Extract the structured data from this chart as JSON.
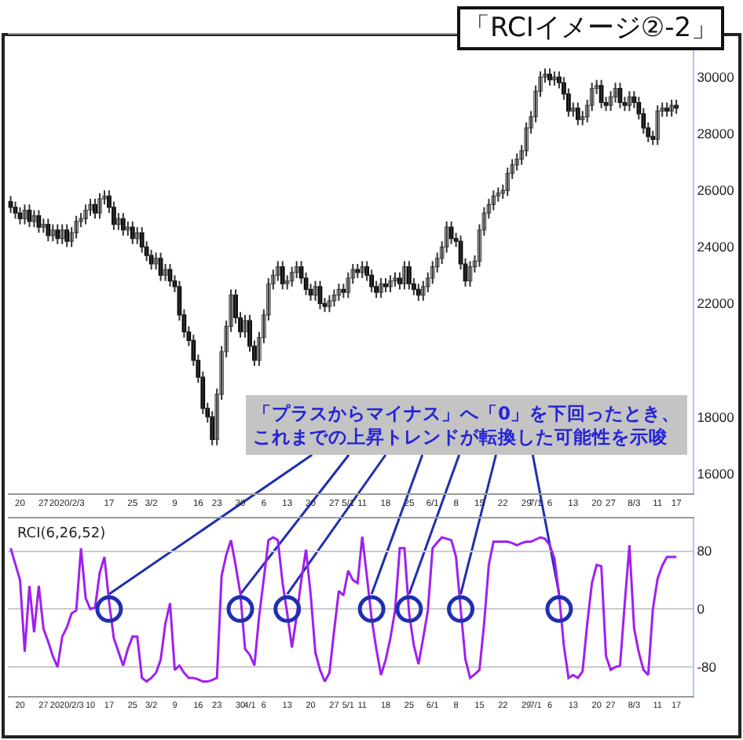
{
  "chart_data": [
    {
      "type": "candlestick",
      "title": "「RCIイメージ②-2」",
      "categories": [
        null,
        null,
        "20",
        null,
        null,
        null,
        null,
        "27",
        null,
        null,
        null,
        null,
        "2020/2/3",
        null,
        null,
        null,
        null,
        null,
        null,
        null,
        null,
        "17",
        null,
        null,
        null,
        null,
        "25",
        null,
        null,
        null,
        "3/2",
        null,
        null,
        null,
        null,
        "9",
        null,
        null,
        null,
        null,
        "16",
        null,
        null,
        null,
        "23",
        null,
        null,
        null,
        null,
        "30",
        null,
        null,
        null,
        null,
        "6",
        null,
        null,
        null,
        null,
        "13",
        null,
        null,
        null,
        null,
        "20",
        null,
        null,
        null,
        null,
        "27",
        null,
        null,
        "5/1",
        null,
        null,
        "11",
        null,
        null,
        null,
        null,
        "18",
        null,
        null,
        null,
        null,
        "25",
        null,
        null,
        null,
        null,
        "6/1",
        null,
        null,
        null,
        null,
        "8",
        null,
        null,
        null,
        null,
        "15",
        null,
        null,
        null,
        null,
        "22",
        null,
        null,
        null,
        null,
        "29",
        null,
        "7/1",
        null,
        null,
        "6",
        null,
        null,
        null,
        null,
        "13",
        null,
        null,
        null,
        null,
        "20",
        null,
        null,
        "27",
        null,
        null,
        null,
        null,
        "8/3",
        null,
        null,
        null,
        null,
        "11",
        null,
        null,
        null,
        "17"
      ],
      "ohlc": [
        [
          25600,
          25800,
          25200,
          25400
        ],
        [
          25400,
          25600,
          25000,
          25200
        ],
        [
          25200,
          25400,
          24800,
          25000
        ],
        [
          25000,
          25500,
          24800,
          25300
        ],
        [
          25300,
          25500,
          24700,
          24900
        ],
        [
          24900,
          25300,
          24700,
          25100
        ],
        [
          25100,
          25300,
          24500,
          24700
        ],
        [
          24700,
          25000,
          24500,
          24800
        ],
        [
          24800,
          25000,
          24200,
          24400
        ],
        [
          24400,
          24800,
          24200,
          24600
        ],
        [
          24600,
          24800,
          24100,
          24300
        ],
        [
          24300,
          24800,
          24100,
          24600
        ],
        [
          24600,
          24800,
          24000,
          24200
        ],
        [
          24200,
          24700,
          24000,
          24500
        ],
        [
          24500,
          25100,
          24300,
          24900
        ],
        [
          24900,
          25200,
          24700,
          25000
        ],
        [
          25000,
          25500,
          24800,
          25300
        ],
        [
          25300,
          25700,
          25100,
          25500
        ],
        [
          25500,
          25700,
          25000,
          25200
        ],
        [
          25200,
          25900,
          25000,
          25700
        ],
        [
          25700,
          26000,
          25500,
          25800
        ],
        [
          25800,
          26000,
          25200,
          25400
        ],
        [
          25400,
          25600,
          24600,
          24800
        ],
        [
          24800,
          25200,
          24600,
          25000
        ],
        [
          25000,
          25200,
          24400,
          24600
        ],
        [
          24600,
          24900,
          24400,
          24700
        ],
        [
          24700,
          24900,
          24100,
          24300
        ],
        [
          24300,
          24700,
          24100,
          24500
        ],
        [
          24500,
          24700,
          23800,
          24000
        ],
        [
          24000,
          24200,
          23500,
          23700
        ],
        [
          23700,
          23900,
          23200,
          23400
        ],
        [
          23400,
          23800,
          23200,
          23600
        ],
        [
          23600,
          23800,
          22800,
          23000
        ],
        [
          23000,
          23400,
          22800,
          23200
        ],
        [
          23200,
          23400,
          22600,
          22800
        ],
        [
          22800,
          23000,
          22400,
          22600
        ],
        [
          22600,
          22800,
          21400,
          21600
        ],
        [
          21600,
          21800,
          20800,
          21000
        ],
        [
          21000,
          21200,
          20500,
          20700
        ],
        [
          20700,
          20900,
          19800,
          20000
        ],
        [
          20000,
          20200,
          19200,
          19400
        ],
        [
          19400,
          19600,
          18100,
          18300
        ],
        [
          18300,
          18500,
          17800,
          18000
        ],
        [
          18000,
          18200,
          17000,
          17200
        ],
        [
          17200,
          19000,
          17000,
          18800
        ],
        [
          18800,
          20500,
          18600,
          20300
        ],
        [
          20300,
          21400,
          20100,
          21200
        ],
        [
          21200,
          22500,
          21000,
          22300
        ],
        [
          22300,
          22500,
          21300,
          21500
        ],
        [
          21500,
          21700,
          20800,
          21000
        ],
        [
          21000,
          21600,
          20800,
          21400
        ],
        [
          21400,
          21600,
          20300,
          20500
        ],
        [
          20500,
          20700,
          19800,
          20000
        ],
        [
          20000,
          21000,
          19800,
          20800
        ],
        [
          20800,
          21800,
          20600,
          21600
        ],
        [
          21600,
          22900,
          21400,
          22700
        ],
        [
          22700,
          23200,
          22500,
          23000
        ],
        [
          23000,
          23500,
          22800,
          23300
        ],
        [
          23300,
          23500,
          22500,
          22700
        ],
        [
          22700,
          23000,
          22500,
          22800
        ],
        [
          22800,
          23300,
          22600,
          23100
        ],
        [
          23100,
          23500,
          22900,
          23300
        ],
        [
          23300,
          23500,
          22700,
          22900
        ],
        [
          22900,
          23100,
          22300,
          22500
        ],
        [
          22500,
          22700,
          22100,
          22300
        ],
        [
          22300,
          22800,
          22100,
          22600
        ],
        [
          22600,
          22800,
          21800,
          22000
        ],
        [
          22000,
          22200,
          21700,
          21900
        ],
        [
          21900,
          22300,
          21700,
          22100
        ],
        [
          22100,
          22500,
          21900,
          22300
        ],
        [
          22300,
          22700,
          22100,
          22500
        ],
        [
          22500,
          22700,
          22200,
          22400
        ],
        [
          22400,
          23100,
          22200,
          22900
        ],
        [
          22900,
          23400,
          22700,
          23200
        ],
        [
          23200,
          23400,
          22900,
          23100
        ],
        [
          23100,
          23500,
          22900,
          23300
        ],
        [
          23300,
          23500,
          22800,
          23000
        ],
        [
          23000,
          23200,
          22400,
          22600
        ],
        [
          22600,
          22800,
          22200,
          22400
        ],
        [
          22400,
          22900,
          22200,
          22700
        ],
        [
          22700,
          22900,
          22400,
          22600
        ],
        [
          22600,
          23000,
          22400,
          22800
        ],
        [
          22800,
          23100,
          22600,
          22900
        ],
        [
          22900,
          23100,
          22500,
          22700
        ],
        [
          22700,
          23500,
          22500,
          23300
        ],
        [
          23300,
          23500,
          22500,
          22700
        ],
        [
          22700,
          22900,
          22300,
          22500
        ],
        [
          22500,
          22700,
          22100,
          22300
        ],
        [
          22300,
          22800,
          22100,
          22600
        ],
        [
          22600,
          23100,
          22400,
          22900
        ],
        [
          22900,
          23500,
          22700,
          23300
        ],
        [
          23300,
          23800,
          23100,
          23600
        ],
        [
          23600,
          24200,
          23400,
          24000
        ],
        [
          24000,
          24900,
          23800,
          24700
        ],
        [
          24700,
          24900,
          24100,
          24300
        ],
        [
          24300,
          24500,
          24000,
          24200
        ],
        [
          24200,
          24400,
          23200,
          23400
        ],
        [
          23400,
          23600,
          22600,
          22800
        ],
        [
          22800,
          23500,
          22600,
          23300
        ],
        [
          23300,
          23700,
          23100,
          23500
        ],
        [
          23500,
          24800,
          23300,
          24600
        ],
        [
          24600,
          25400,
          24400,
          25200
        ],
        [
          25200,
          25700,
          25000,
          25500
        ],
        [
          25500,
          26000,
          25300,
          25800
        ],
        [
          25800,
          26100,
          25600,
          25900
        ],
        [
          25900,
          26200,
          25700,
          26000
        ],
        [
          26000,
          26800,
          25800,
          26600
        ],
        [
          26600,
          27100,
          26400,
          26900
        ],
        [
          26900,
          27300,
          26700,
          27100
        ],
        [
          27100,
          27600,
          26900,
          27400
        ],
        [
          27400,
          28400,
          27200,
          28200
        ],
        [
          28200,
          28800,
          28000,
          28600
        ],
        [
          28600,
          29700,
          28400,
          29500
        ],
        [
          29500,
          30200,
          29300,
          30000
        ],
        [
          30000,
          30300,
          29800,
          30100
        ],
        [
          30100,
          30300,
          29700,
          29900
        ],
        [
          29900,
          30200,
          29700,
          30000
        ],
        [
          30000,
          30200,
          29600,
          29800
        ],
        [
          29800,
          30000,
          29200,
          29400
        ],
        [
          29400,
          29600,
          28600,
          28800
        ],
        [
          28800,
          29100,
          28600,
          28900
        ],
        [
          28900,
          29100,
          28300,
          28500
        ],
        [
          28500,
          28800,
          28300,
          28600
        ],
        [
          28600,
          29200,
          28400,
          29000
        ],
        [
          29000,
          29800,
          28800,
          29600
        ],
        [
          29600,
          29900,
          29400,
          29700
        ],
        [
          29700,
          29900,
          28900,
          29100
        ],
        [
          29100,
          29300,
          28800,
          29000
        ],
        [
          29000,
          29500,
          28800,
          29300
        ],
        [
          29300,
          29800,
          29100,
          29600
        ],
        [
          29600,
          29800,
          28900,
          29100
        ],
        [
          29100,
          29300,
          28800,
          29000
        ],
        [
          29000,
          29500,
          28800,
          29300
        ],
        [
          29300,
          29500,
          28900,
          29100
        ],
        [
          29100,
          29300,
          28500,
          28700
        ],
        [
          28700,
          28900,
          28000,
          28200
        ],
        [
          28200,
          28400,
          27700,
          27900
        ],
        [
          27900,
          28100,
          27600,
          27800
        ],
        [
          27800,
          29000,
          27600,
          28800
        ],
        [
          28800,
          29100,
          28600,
          28900
        ],
        [
          28900,
          29100,
          28600,
          28800
        ],
        [
          28800,
          29200,
          28600,
          29000
        ],
        [
          29000,
          29200,
          28700,
          28900
        ]
      ],
      "ylim": [
        15300,
        31500
      ],
      "yticks": [
        30000,
        28000,
        26000,
        24000,
        22000,
        18000,
        16000
      ],
      "grid": false,
      "annotations": [
        "「プラスからマイナス」へ「0」を下回ったとき、これまでの上昇トレンドが転換した可能性を示唆"
      ]
    },
    {
      "type": "line",
      "title": "RCI(6,26,52)",
      "categories": [
        null,
        null,
        "20",
        null,
        null,
        null,
        null,
        "27",
        null,
        null,
        null,
        null,
        "2020/2/3",
        null,
        null,
        null,
        null,
        "10",
        null,
        null,
        null,
        "17",
        null,
        null,
        null,
        null,
        "25",
        null,
        null,
        null,
        "3/2",
        null,
        null,
        null,
        null,
        "9",
        null,
        null,
        null,
        null,
        "16",
        null,
        null,
        null,
        "23",
        null,
        null,
        null,
        null,
        "30",
        null,
        "4/1",
        null,
        null,
        "6",
        null,
        null,
        null,
        null,
        "13",
        null,
        null,
        null,
        null,
        "20",
        null,
        null,
        null,
        null,
        "27",
        null,
        null,
        "5/1",
        null,
        null,
        "11",
        null,
        null,
        null,
        null,
        "18",
        null,
        null,
        null,
        null,
        "25",
        null,
        null,
        null,
        null,
        "6/1",
        null,
        null,
        null,
        null,
        "8",
        null,
        null,
        null,
        null,
        "15",
        null,
        null,
        null,
        null,
        "22",
        null,
        null,
        null,
        null,
        "29",
        null,
        "7/1",
        null,
        null,
        "6",
        null,
        null,
        null,
        null,
        "13",
        null,
        null,
        null,
        null,
        "20",
        null,
        null,
        "27",
        null,
        null,
        null,
        null,
        "8/3",
        null,
        null,
        null,
        null,
        "11",
        null,
        null,
        null,
        "17"
      ],
      "series": [
        {
          "type": "line",
          "color": "#a020f0",
          "values": [
            84,
            62,
            40,
            -59,
            32,
            -32,
            32,
            -27,
            -45,
            -65,
            -80,
            -38,
            -25,
            -6,
            -2,
            84,
            15,
            0,
            2,
            50,
            72,
            10,
            -40,
            -59,
            -78,
            -55,
            -38,
            -38,
            -95,
            -100,
            -95,
            -88,
            -70,
            -20,
            8,
            -84,
            -78,
            -88,
            -95,
            -95,
            -97,
            -100,
            -100,
            -98,
            -95,
            46,
            75,
            95,
            60,
            21,
            -55,
            -63,
            -78,
            -10,
            42,
            95,
            99,
            95,
            36,
            -6,
            -53,
            -10,
            40,
            82,
            20,
            -60,
            -84,
            -100,
            -88,
            -30,
            25,
            19,
            53,
            40,
            36,
            100,
            45,
            -13,
            -55,
            -91,
            -70,
            -40,
            -2,
            84,
            84,
            -6,
            -50,
            -76,
            -40,
            -2,
            84,
            92,
            99,
            97,
            95,
            72,
            0,
            -69,
            -95,
            -90,
            -84,
            -20,
            61,
            93,
            93,
            93,
            93,
            91,
            88,
            91,
            93,
            93,
            96,
            99,
            97,
            88,
            70,
            19,
            -50,
            -95,
            -91,
            -95,
            -86,
            -20,
            36,
            61,
            59,
            -65,
            -84,
            -80,
            -78,
            8,
            88,
            -27,
            -60,
            -84,
            -91,
            0,
            42,
            60,
            72,
            72,
            72
          ]
        },
        {
          "type": "scatter",
          "color": "#1f2fb0",
          "marker": "circle",
          "values": [
            null,
            null,
            null,
            null,
            null,
            null,
            null,
            null,
            null,
            null,
            null,
            null,
            null,
            null,
            null,
            null,
            null,
            null,
            null,
            null,
            null,
            0,
            null,
            null,
            null,
            null,
            null,
            null,
            null,
            null,
            null,
            null,
            null,
            null,
            null,
            null,
            null,
            null,
            null,
            null,
            null,
            null,
            null,
            null,
            null,
            null,
            null,
            null,
            null,
            0,
            null,
            null,
            null,
            null,
            null,
            null,
            null,
            null,
            null,
            0,
            null,
            null,
            null,
            null,
            null,
            null,
            null,
            null,
            null,
            null,
            null,
            null,
            null,
            null,
            null,
            null,
            null,
            0,
            null,
            null,
            null,
            null,
            null,
            null,
            null,
            0,
            null,
            null,
            null,
            null,
            null,
            null,
            null,
            null,
            null,
            null,
            0,
            null,
            null,
            null,
            null,
            null,
            null,
            null,
            null,
            null,
            null,
            null,
            null,
            null,
            null,
            null,
            null,
            null,
            null,
            null,
            null,
            0,
            null,
            null,
            null,
            null,
            null,
            null,
            null,
            null,
            null,
            null,
            null,
            null,
            null,
            null,
            null,
            null,
            null,
            null,
            null,
            null,
            null,
            null,
            null,
            null,
            null
          ]
        }
      ],
      "ylim": [
        -120,
        125
      ],
      "yticks": [
        80,
        0,
        -80
      ],
      "grid": "y"
    }
  ]
}
